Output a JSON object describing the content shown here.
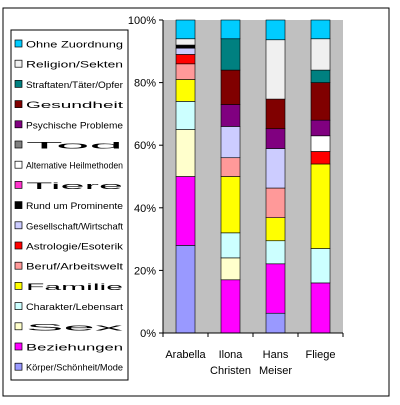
{
  "chart_data": {
    "type": "bar",
    "stacked": true,
    "percent": true,
    "categories": [
      {
        "line1": "Arabella",
        "line2": ""
      },
      {
        "line1": "Ilona",
        "line2": "Christen"
      },
      {
        "line1": "Hans",
        "line2": "Meiser"
      },
      {
        "line1": "Fliege",
        "line2": ""
      }
    ],
    "ylim": [
      0,
      100
    ],
    "y_ticks": [
      "0%",
      "20%",
      "40%",
      "60%",
      "80%",
      "100%"
    ],
    "grid": false,
    "plot_background": "#c0c0c0",
    "legend_position": "left",
    "series": [
      {
        "name": "Körper/Schönheit/Mode",
        "color": "#9999ff",
        "values": [
          28,
          0,
          6,
          0
        ]
      },
      {
        "name": "Beziehungen",
        "color": "#ff00ff",
        "values": [
          22,
          17,
          15,
          16
        ]
      },
      {
        "name": "Sex",
        "color": "#ffffcc",
        "values": [
          15,
          7,
          0,
          0
        ]
      },
      {
        "name": "Charakter/Lebensart",
        "color": "#ccffff",
        "values": [
          9,
          8,
          7,
          11
        ]
      },
      {
        "name": "Familie",
        "color": "#ffff00",
        "values": [
          7,
          18,
          7,
          27
        ]
      },
      {
        "name": "Beruf/Arbeitswelt",
        "color": "#ff9999",
        "values": [
          5,
          6,
          9,
          0
        ]
      },
      {
        "name": "Astrologie/Esoterik",
        "color": "#ff0000",
        "values": [
          3,
          0,
          0,
          4
        ]
      },
      {
        "name": "Gesellschaft/Wirtschaft",
        "color": "#ccccff",
        "values": [
          2,
          10,
          12,
          0
        ]
      },
      {
        "name": "Rund um Prominente",
        "color": "#000000",
        "values": [
          1,
          0,
          0,
          0
        ]
      },
      {
        "name": "Tiere",
        "color": "#ff33cc",
        "values": [
          0,
          0,
          0,
          0
        ]
      },
      {
        "name": "Alternative Heilmethoden",
        "color": "#ffffff",
        "values": [
          0,
          0,
          0,
          5
        ]
      },
      {
        "name": "Tod",
        "color": "#808080",
        "values": [
          0,
          0,
          0,
          0
        ]
      },
      {
        "name": "Psychische Probleme",
        "color": "#800080",
        "values": [
          0,
          7,
          6,
          5
        ]
      },
      {
        "name": "Gesundheit",
        "color": "#800000",
        "values": [
          0,
          11,
          9,
          12
        ]
      },
      {
        "name": "Straftaten/Täter/Opfer",
        "color": "#008080",
        "values": [
          0,
          10,
          0,
          4
        ]
      },
      {
        "name": "Religion/Sekten",
        "color": "#f0f0f0",
        "values": [
          2,
          0,
          18,
          10
        ]
      },
      {
        "name": "Ohne Zuordnung",
        "color": "#00ccff",
        "values": [
          6,
          6,
          6,
          6
        ]
      }
    ]
  }
}
